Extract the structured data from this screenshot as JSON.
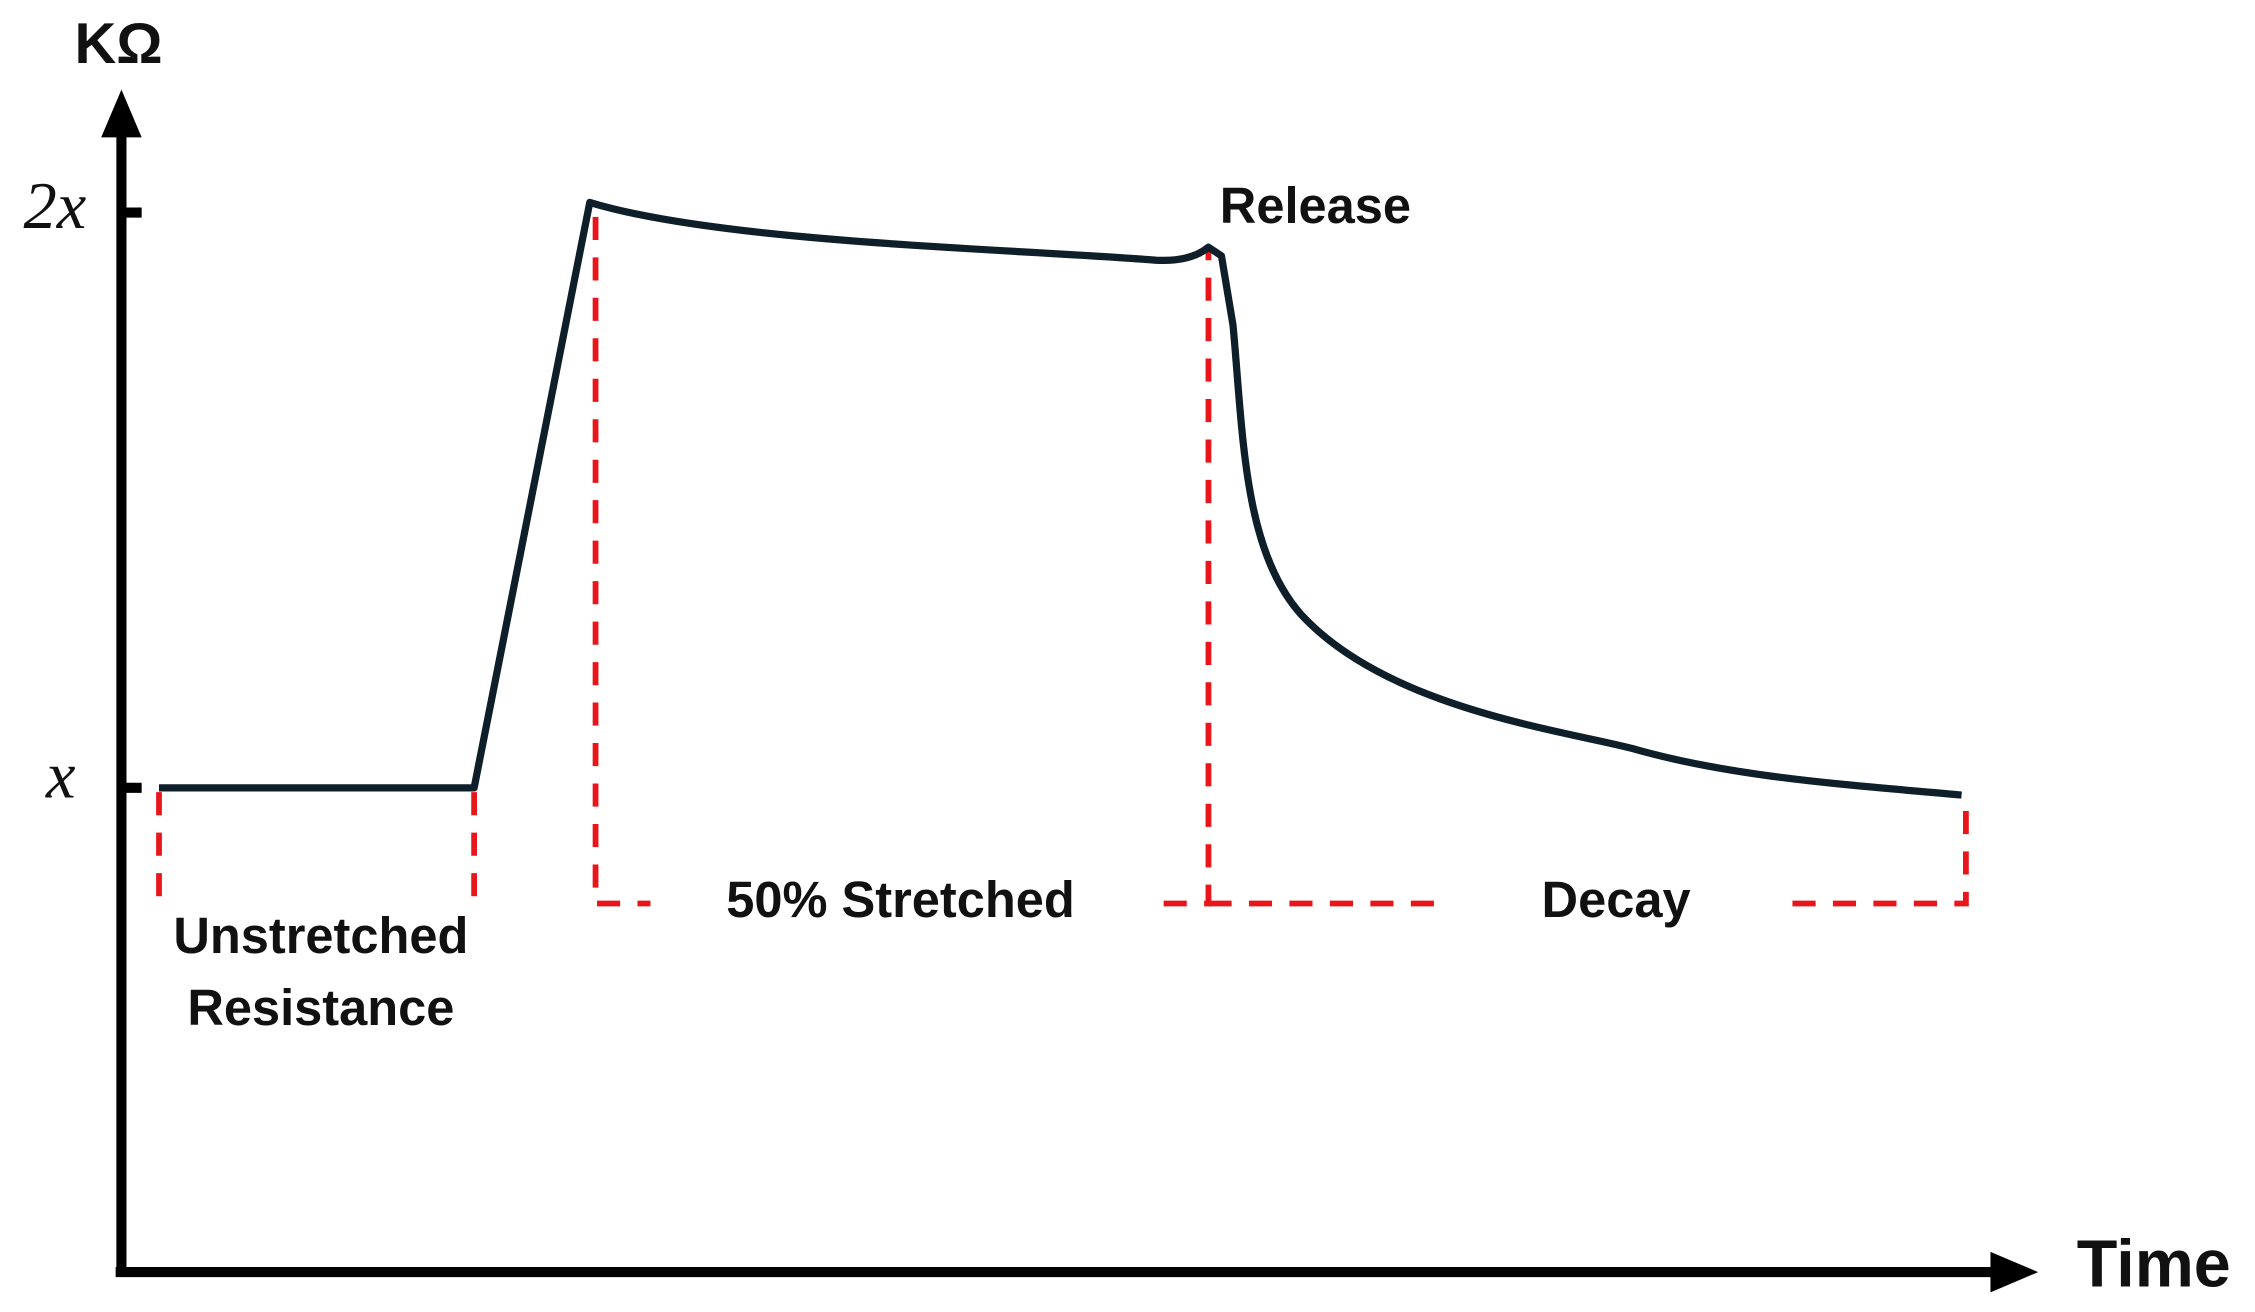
{
  "y_axis": {
    "label": "KΩ",
    "ticks": [
      "2x",
      "x"
    ]
  },
  "x_axis": {
    "label": "Time"
  },
  "annotations": {
    "release": "Release",
    "unstretched": [
      "Unstretched",
      "Resistance"
    ],
    "stretched": "50% Stretched",
    "decay": "Decay"
  }
}
